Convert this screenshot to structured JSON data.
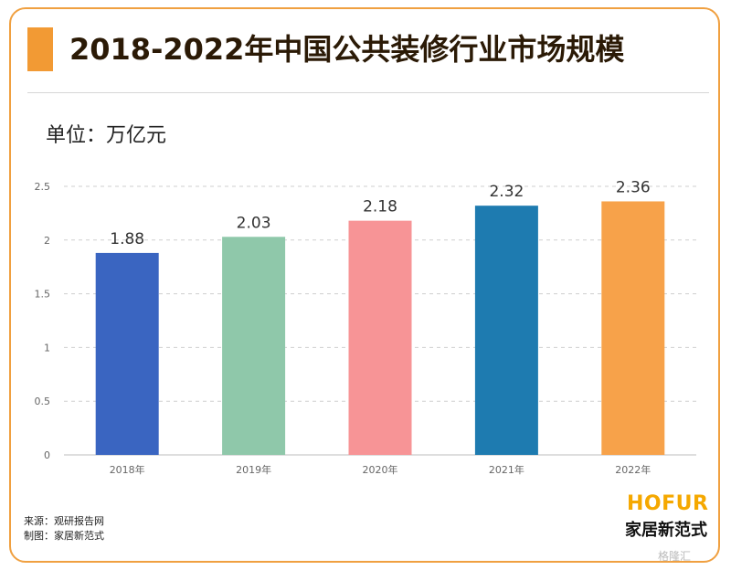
{
  "header": {
    "title": "2018-2022年中国公共装修行业市场规模"
  },
  "unit_label": "单位：万亿元",
  "chart_data": {
    "type": "bar",
    "categories": [
      "2018年",
      "2019年",
      "2020年",
      "2021年",
      "2022年"
    ],
    "values": [
      1.88,
      2.03,
      2.18,
      2.32,
      2.36
    ],
    "value_labels": [
      "1.88",
      "2.03",
      "2.18",
      "2.32",
      "2.36"
    ],
    "bar_colors": [
      "#3a65c1",
      "#8fc8aa",
      "#f79496",
      "#1e7bb0",
      "#f7a24a"
    ],
    "ylim": [
      0,
      2.5
    ],
    "yticks": [
      0,
      0.5,
      1,
      1.5,
      2,
      2.5
    ],
    "ytick_labels": [
      "0",
      "0.5",
      "1",
      "1.5",
      "2",
      "2.5"
    ],
    "grid": true
  },
  "footer": {
    "source": "来源：观研报告网",
    "made_by": "制图：家居新范式",
    "brand_en": "HOFUR",
    "brand_cn": "家居新范式",
    "watermark": "格隆汇"
  }
}
